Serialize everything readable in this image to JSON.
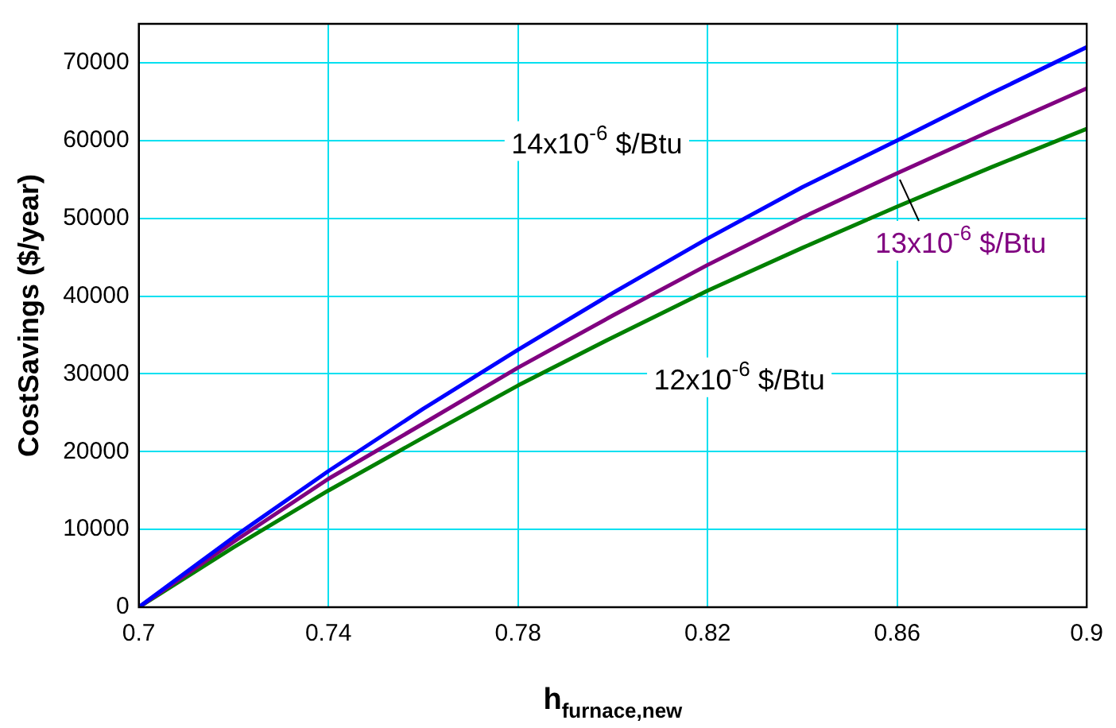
{
  "chart_data": {
    "type": "line",
    "xlabel": "h$_{furnace,new}$",
    "ylabel": "CostSavings ($/year)",
    "x": [
      0.7,
      0.72,
      0.74,
      0.76,
      0.78,
      0.8,
      0.82,
      0.84,
      0.86,
      0.88,
      0.9
    ],
    "series": [
      {
        "name": "14x10$^{-6}$ $/Btu",
        "color": "#0000ff",
        "values": [
          0,
          9000,
          17500,
          25500,
          33100,
          40400,
          47400,
          54000,
          60000,
          66100,
          72000
        ]
      },
      {
        "name": "13x10$^{-6}$ $/Btu",
        "color": "#800080",
        "values": [
          0,
          8400,
          16500,
          23600,
          30800,
          37500,
          44000,
          50100,
          55800,
          61300,
          66700
        ]
      },
      {
        "name": "12x10$^{-6}$ $/Btu",
        "color": "#008000",
        "values": [
          0,
          7700,
          15000,
          21800,
          28500,
          34700,
          40700,
          46200,
          51500,
          56600,
          61500
        ]
      }
    ],
    "xlim": [
      0.7,
      0.9
    ],
    "xticks": [
      0.7,
      0.74,
      0.78,
      0.82,
      0.86,
      0.9
    ],
    "ylim": [
      0,
      75000
    ],
    "yticks": [
      0,
      10000,
      20000,
      30000,
      40000,
      50000,
      60000,
      70000
    ],
    "grid": true,
    "legend": false,
    "marker": "none",
    "line_style": "solid"
  }
}
